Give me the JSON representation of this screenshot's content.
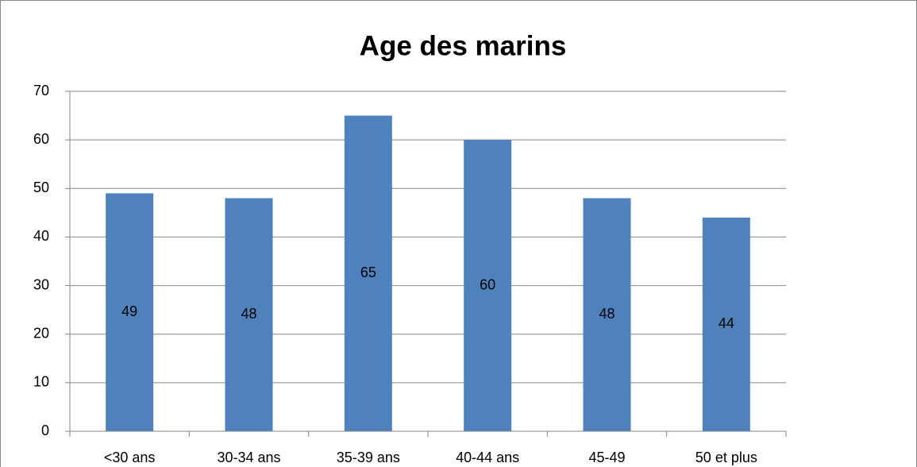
{
  "chart_data": {
    "type": "bar",
    "title": "Age des marins",
    "categories": [
      "<30 ans",
      "30-34 ans",
      "35-39 ans",
      "40-44 ans",
      "45-49",
      "50 et plus"
    ],
    "values": [
      49,
      48,
      65,
      60,
      48,
      44
    ],
    "color": "#4f81bd",
    "ylim": [
      0,
      70
    ],
    "yticks": [
      0,
      10,
      20,
      30,
      40,
      50,
      60,
      70
    ],
    "grid": true
  }
}
